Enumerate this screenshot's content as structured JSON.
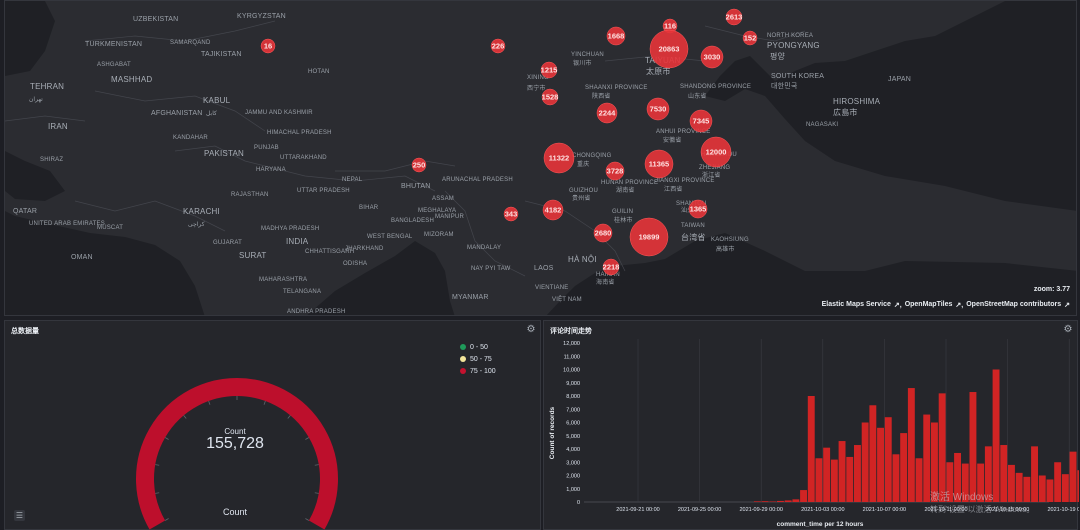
{
  "map": {
    "zoom_text": "zoom: 3.77",
    "attributions": [
      "Elastic Maps Service",
      "OpenMapTiles",
      "OpenStreetMap contributors"
    ],
    "marker_color": "#e7343a",
    "markers": [
      {
        "label": "16",
        "r": 7
      },
      {
        "label": "226",
        "r": 7
      },
      {
        "label": "1215",
        "r": 8
      },
      {
        "label": "1528",
        "r": 8
      },
      {
        "label": "1668",
        "r": 9
      },
      {
        "label": "116",
        "r": 7
      },
      {
        "label": "20863",
        "r": 19
      },
      {
        "label": "2613",
        "r": 8
      },
      {
        "label": "152",
        "r": 7
      },
      {
        "label": "3030",
        "r": 11
      },
      {
        "label": "2244",
        "r": 10
      },
      {
        "label": "7530",
        "r": 11
      },
      {
        "label": "7345",
        "r": 11
      },
      {
        "label": "12000",
        "r": 15
      },
      {
        "label": "11322",
        "r": 15
      },
      {
        "label": "11365",
        "r": 14
      },
      {
        "label": "3728",
        "r": 9
      },
      {
        "label": "4182",
        "r": 10
      },
      {
        "label": "250",
        "r": 7
      },
      {
        "label": "343",
        "r": 7
      },
      {
        "label": "2680",
        "r": 9
      },
      {
        "label": "1365",
        "r": 9
      },
      {
        "label": "19899",
        "r": 19
      },
      {
        "label": "2218",
        "r": 8
      }
    ],
    "places": [
      "UZBEKISTAN",
      "KYRGYZSTAN",
      "TURKMENISTAN",
      "SAMARQAND",
      "TAJIKISTAN",
      "ASHGABAT",
      "MASHHAD",
      "TEHRAN",
      "تهران",
      "AFGHANISTAN",
      "KABUL",
      "کابل",
      "JAMMU AND KASHMIR",
      "IRAN",
      "KANDAHAR",
      "PAKISTAN",
      "HIMACHAL PRADESH",
      "PUNJAB",
      "UTTARAKHAND",
      "HARYANA",
      "SHIRAZ",
      "QATAR",
      "UNITED ARAB EMIRATES",
      "MUSCAT",
      "OMAN",
      "KARACHI",
      "كراچى",
      "RAJASTHAN",
      "GUJARAT",
      "MADHYA PRADESH",
      "SURAT",
      "INDIA",
      "CHHATTISGARH",
      "MAHARASHTRA",
      "TELANGANA",
      "ANDHRA PRADESH",
      "UTTAR PRADESH",
      "NEPAL",
      "BHUTAN",
      "ARUNACHAL PRADESH",
      "BIHAR",
      "ASSAM",
      "BANGLADESH",
      "MEGHALAYA",
      "MANIPUR",
      "WEST BENGAL",
      "MIZORAM",
      "ODISHA",
      "JHARKHAND",
      "NAY PYI TAW",
      "MYANMAR",
      "MANDALAY",
      "HÀ NỘI",
      "LAOS",
      "VIENTIANE",
      "VIỆT NAM",
      "HOTAN",
      "XINING",
      "西宁市",
      "YINCHUAN",
      "银川市",
      "SHAANXI PROVINCE",
      "陕西省",
      "TAIYUAN",
      "太原市",
      "SHANDONG PROVINCE",
      "山东省",
      "ANHUI PROVINCE",
      "安徽省",
      "ZHEJIANG",
      "浙江省",
      "CHONGQING",
      "重庆",
      "HUNAN PROVINCE",
      "湖南省",
      "JIANGXI PROVINCE",
      "江西省",
      "GUIZHOU",
      "贵州省",
      "GUILIN",
      "桂林市",
      "SHANTOU",
      "汕头市",
      "TAIWAN",
      "台湾省",
      "KAOHSIUNG",
      "高雄市",
      "HAINAN",
      "海南省",
      "PYONGYANG",
      "평양",
      "NORTH KOREA",
      "SOUTH KOREA",
      "대한민국",
      "HIROSHIMA",
      "広島市",
      "JAPAN",
      "NAGASAKI",
      "HANGZHOU"
    ]
  },
  "gauge": {
    "title": "总数据量",
    "count_label": "Count",
    "value": "155,728",
    "bottom_label": "Count",
    "legend": [
      {
        "label": "0 - 50",
        "color": "#1f9a5a"
      },
      {
        "label": "50 - 75",
        "color": "#f2e49a"
      },
      {
        "label": "75 - 100",
        "color": "#c4122f"
      }
    ],
    "arc_color": "#bd0f2c",
    "level_percent": 100
  },
  "histogram": {
    "title": "评论时间走势",
    "bar_color": "#d12424"
  },
  "chart_data": {
    "type": "bar",
    "title": "评论时间走势",
    "xlabel": "comment_time per 12 hours",
    "ylabel": "Count of records",
    "ylim": [
      0,
      12000
    ],
    "yticks": [
      "0",
      "1,000",
      "2,000",
      "3,000",
      "4,000",
      "5,000",
      "6,000",
      "7,000",
      "8,000",
      "9,000",
      "10,000",
      "11,000",
      "12,000"
    ],
    "xticks": [
      "2021-09-21 00:00",
      "2021-09-25 00:00",
      "2021-09-29 00:00",
      "2021-10-03 00:00",
      "2021-10-07 00:00",
      "2021-10-11 00:00",
      "2021-10-15 00:00",
      "2021-10-19 00:00"
    ],
    "start": "2021-09-28 12:00",
    "values": [
      50,
      60,
      40,
      80,
      120,
      200,
      900,
      8000,
      3300,
      4100,
      3200,
      4600,
      3400,
      4300,
      6000,
      7300,
      5600,
      6400,
      3600,
      5200,
      8600,
      3300,
      6600,
      6000,
      8200,
      3000,
      3700,
      2900,
      8300,
      2900,
      4200,
      10000,
      4300,
      2800,
      2200,
      1900,
      4200,
      2000,
      1700,
      3000,
      2100,
      3800,
      2400,
      5800,
      1200,
      700,
      300,
      600,
      900,
      600,
      1200,
      800,
      1500,
      1400,
      900,
      500,
      300
    ]
  }
}
